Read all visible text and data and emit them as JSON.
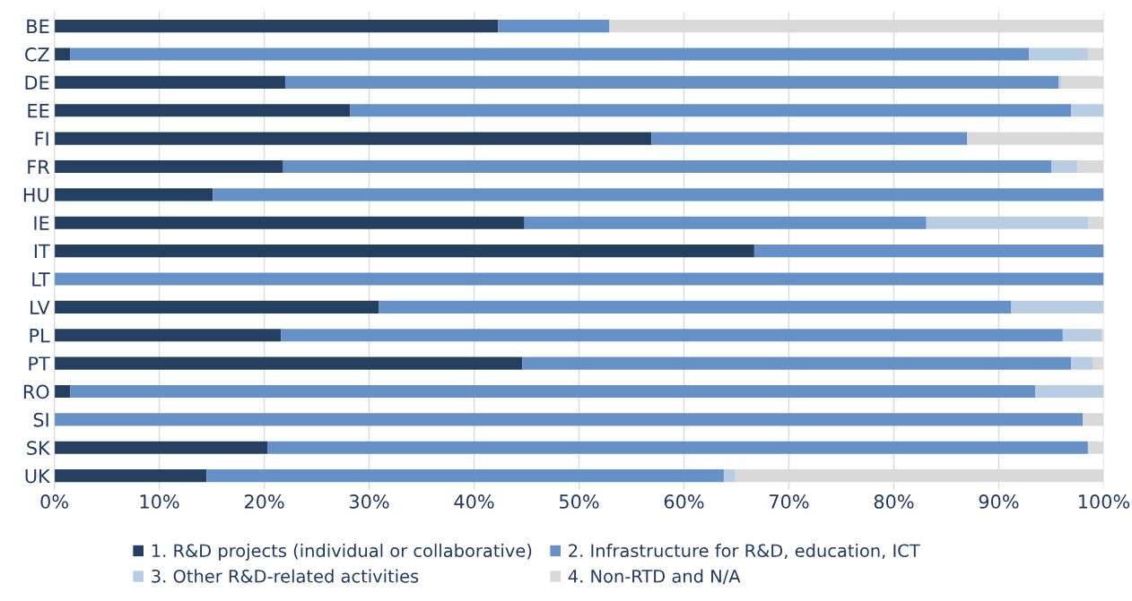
{
  "chart_data": {
    "type": "bar",
    "orientation": "horizontal",
    "stacked": true,
    "categories": [
      "BE",
      "CZ",
      "DE",
      "EE",
      "FI",
      "FR",
      "HU",
      "IE",
      "IT",
      "LT",
      "LV",
      "PL",
      "PT",
      "RO",
      "SI",
      "SK",
      "UK"
    ],
    "series": [
      {
        "name": "1. R&D projects (individual or collaborative)",
        "color": "#243f60",
        "values": [
          42.3,
          1.5,
          22.0,
          28.2,
          56.9,
          21.8,
          15.1,
          44.8,
          66.7,
          0,
          30.9,
          21.6,
          44.6,
          1.5,
          0,
          20.3,
          14.5
        ]
      },
      {
        "name": "2. Infrastructure for R&D, education, ICT",
        "color": "#6691c6",
        "values": [
          10.6,
          91.4,
          73.7,
          68.7,
          30.1,
          73.2,
          84.9,
          38.3,
          33.3,
          100,
          60.3,
          74.5,
          52.3,
          92.0,
          98.0,
          78.2,
          49.3
        ]
      },
      {
        "name": "3. Other R&D-related activities",
        "color": "#b8cce4",
        "values": [
          0,
          5.6,
          0.3,
          3.1,
          0,
          2.5,
          0,
          15.4,
          0,
          0,
          8.8,
          3.7,
          2.1,
          6.5,
          0,
          0,
          1.1
        ]
      },
      {
        "name": "4. Non-RTD and N/A",
        "color": "#d9d9d9",
        "values": [
          47.1,
          1.5,
          4.0,
          0,
          13.0,
          2.5,
          0,
          1.5,
          0,
          0,
          0,
          0.2,
          1.0,
          0,
          2.0,
          1.5,
          35.1
        ]
      }
    ],
    "xlim": [
      0,
      100
    ],
    "xticks": [
      {
        "value": 0,
        "label": "0%"
      },
      {
        "value": 10,
        "label": "10%"
      },
      {
        "value": 20,
        "label": "20%"
      },
      {
        "value": 30,
        "label": "30%"
      },
      {
        "value": 40,
        "label": "40%"
      },
      {
        "value": 50,
        "label": "50%"
      },
      {
        "value": 60,
        "label": "60%"
      },
      {
        "value": 70,
        "label": "70%"
      },
      {
        "value": 80,
        "label": "80%"
      },
      {
        "value": 90,
        "label": "90%"
      },
      {
        "value": 100,
        "label": "100%"
      }
    ],
    "grid": "x",
    "legend": "bottom"
  }
}
